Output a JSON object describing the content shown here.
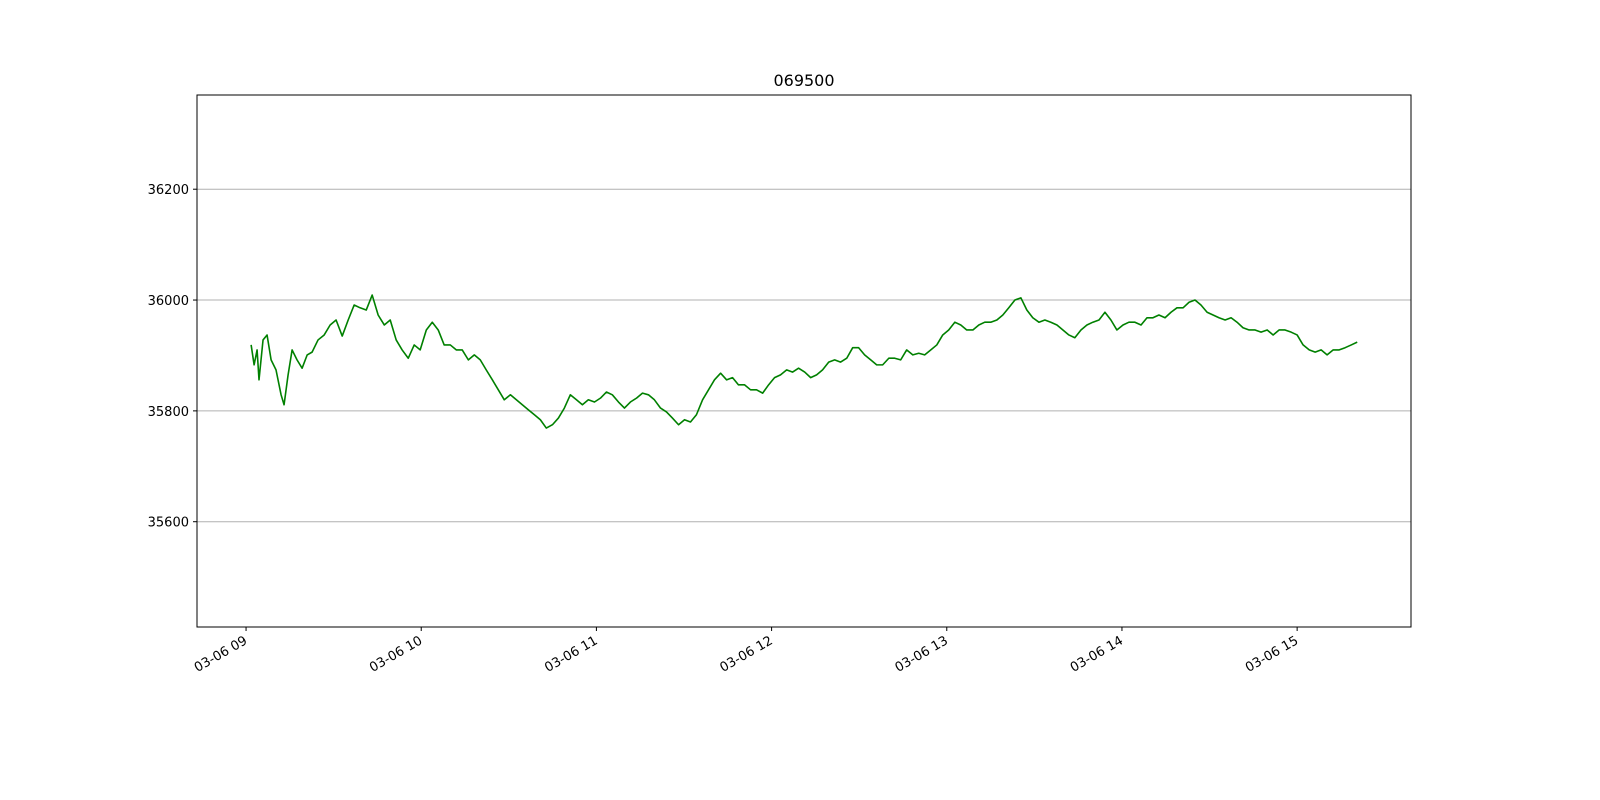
{
  "chart_data": {
    "type": "line",
    "title": "069500",
    "color": "#008000",
    "grid": "y",
    "xlim": [
      8.72,
      15.65
    ],
    "xticks": [
      {
        "value": 9,
        "label": "03-06 09"
      },
      {
        "value": 10,
        "label": "03-06 10"
      },
      {
        "value": 11,
        "label": "03-06 11"
      },
      {
        "value": 12,
        "label": "03-06 12"
      },
      {
        "value": 13,
        "label": "03-06 13"
      },
      {
        "value": 14,
        "label": "03-06 14"
      },
      {
        "value": 15,
        "label": "03-06 15"
      }
    ],
    "ylim": [
      35410,
      36370
    ],
    "yticks": [
      35600,
      35800,
      36000,
      36200
    ],
    "x": [
      9.029,
      9.046,
      9.063,
      9.074,
      9.097,
      9.12,
      9.143,
      9.171,
      9.2,
      9.217,
      9.24,
      9.263,
      9.291,
      9.32,
      9.349,
      9.377,
      9.411,
      9.446,
      9.48,
      9.514,
      9.549,
      9.583,
      9.617,
      9.651,
      9.686,
      9.72,
      9.754,
      9.789,
      9.823,
      9.857,
      9.891,
      9.926,
      9.96,
      9.994,
      10.029,
      10.063,
      10.097,
      10.131,
      10.166,
      10.2,
      10.234,
      10.269,
      10.303,
      10.337,
      10.371,
      10.406,
      10.44,
      10.474,
      10.509,
      10.543,
      10.577,
      10.611,
      10.646,
      10.68,
      10.714,
      10.749,
      10.783,
      10.817,
      10.851,
      10.886,
      10.92,
      10.954,
      10.989,
      11.023,
      11.057,
      11.091,
      11.126,
      11.16,
      11.194,
      11.229,
      11.263,
      11.297,
      11.331,
      11.366,
      11.4,
      11.434,
      11.469,
      11.503,
      11.537,
      11.571,
      11.606,
      11.64,
      11.674,
      11.709,
      11.743,
      11.777,
      11.811,
      11.846,
      11.88,
      11.914,
      11.949,
      11.983,
      12.017,
      12.051,
      12.086,
      12.12,
      12.154,
      12.189,
      12.223,
      12.257,
      12.291,
      12.326,
      12.36,
      12.394,
      12.429,
      12.463,
      12.497,
      12.531,
      12.566,
      12.6,
      12.634,
      12.669,
      12.703,
      12.737,
      12.771,
      12.806,
      12.84,
      12.874,
      12.909,
      12.943,
      12.977,
      13.011,
      13.046,
      13.08,
      13.114,
      13.149,
      13.183,
      13.217,
      13.251,
      13.286,
      13.32,
      13.354,
      13.389,
      13.423,
      13.457,
      13.491,
      13.526,
      13.56,
      13.594,
      13.629,
      13.663,
      13.697,
      13.731,
      13.766,
      13.8,
      13.834,
      13.869,
      13.903,
      13.937,
      13.971,
      14.006,
      14.04,
      14.074,
      14.109,
      14.143,
      14.177,
      14.211,
      14.246,
      14.28,
      14.314,
      14.349,
      14.383,
      14.417,
      14.451,
      14.486,
      14.52,
      14.554,
      14.589,
      14.623,
      14.657,
      14.691,
      14.726,
      14.76,
      14.794,
      14.829,
      14.863,
      14.897,
      14.931,
      14.966,
      15.0,
      15.034,
      15.069,
      15.103,
      15.137,
      15.171,
      15.206,
      15.24,
      15.274,
      15.309,
      15.343
    ],
    "values": [
      35919,
      35883,
      35910,
      35856,
      35928,
      35937,
      35892,
      35874,
      35829,
      35811,
      35865,
      35910,
      35892,
      35877,
      35901,
      35906,
      35928,
      35937,
      35955,
      35964,
      35935,
      35964,
      35991,
      35986,
      35982,
      36009,
      35973,
      35955,
      35964,
      35928,
      35910,
      35895,
      35919,
      35910,
      35946,
      35960,
      35946,
      35919,
      35919,
      35910,
      35910,
      35892,
      35901,
      35892,
      35874,
      35856,
      35838,
      35820,
      35829,
      35820,
      35811,
      35802,
      35793,
      35784,
      35769,
      35775,
      35787,
      35805,
      35829,
      35820,
      35811,
      35820,
      35816,
      35823,
      35834,
      35829,
      35816,
      35805,
      35816,
      35823,
      35832,
      35829,
      35820,
      35805,
      35798,
      35787,
      35775,
      35784,
      35780,
      35793,
      35820,
      35838,
      35856,
      35868,
      35856,
      35860,
      35847,
      35847,
      35838,
      35838,
      35832,
      35847,
      35860,
      35865,
      35874,
      35870,
      35877,
      35870,
      35860,
      35865,
      35874,
      35888,
      35892,
      35888,
      35895,
      35914,
      35914,
      35901,
      35892,
      35883,
      35883,
      35895,
      35895,
      35892,
      35910,
      35901,
      35904,
      35901,
      35910,
      35919,
      35937,
      35946,
      35960,
      35955,
      35946,
      35946,
      35955,
      35960,
      35960,
      35964,
      35973,
      35986,
      36000,
      36004,
      35982,
      35968,
      35960,
      35964,
      35960,
      35955,
      35946,
      35937,
      35932,
      35946,
      35955,
      35960,
      35964,
      35978,
      35964,
      35946,
      35955,
      35960,
      35960,
      35955,
      35968,
      35968,
      35973,
      35968,
      35978,
      35986,
      35986,
      35996,
      36000,
      35991,
      35978,
      35973,
      35968,
      35964,
      35968,
      35960,
      35950,
      35946,
      35946,
      35942,
      35946,
      35937,
      35946,
      35946,
      35942,
      35937,
      35919,
      35910,
      35906,
      35910,
      35901,
      35910,
      35910,
      35914,
      35919,
      35924
    ]
  }
}
